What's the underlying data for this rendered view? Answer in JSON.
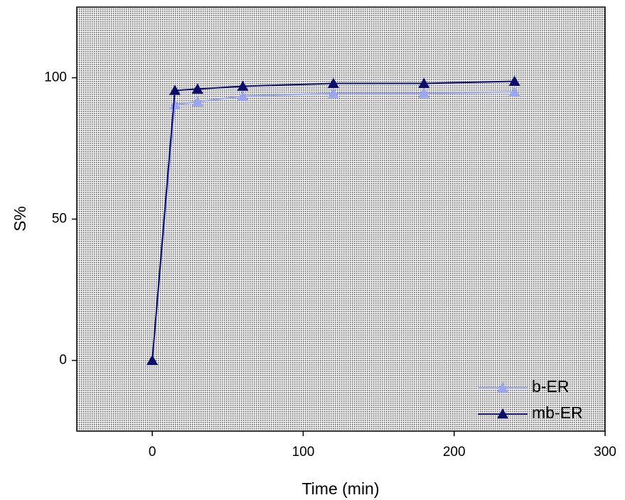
{
  "chart_data": {
    "type": "line",
    "x_label": "Time (min)",
    "y_label": "S%",
    "xlim": [
      -50,
      300
    ],
    "xticks": [
      0,
      100,
      200,
      300
    ],
    "ylim": [
      -25,
      125
    ],
    "yticks": [
      0,
      50,
      100
    ],
    "legend": "lower right",
    "series": [
      {
        "name": "b-ER",
        "color": "#9aa7f0",
        "x": [
          0,
          15,
          30,
          60,
          120,
          180,
          240
        ],
        "values": [
          0,
          90.5,
          91.5,
          93.5,
          94.5,
          94.5,
          95
        ]
      },
      {
        "name": "mb-ER",
        "color": "#0d0d6b",
        "x": [
          0,
          15,
          30,
          60,
          120,
          180,
          240
        ],
        "values": [
          0,
          95.5,
          96,
          97,
          98,
          98,
          98.75
        ]
      }
    ]
  }
}
